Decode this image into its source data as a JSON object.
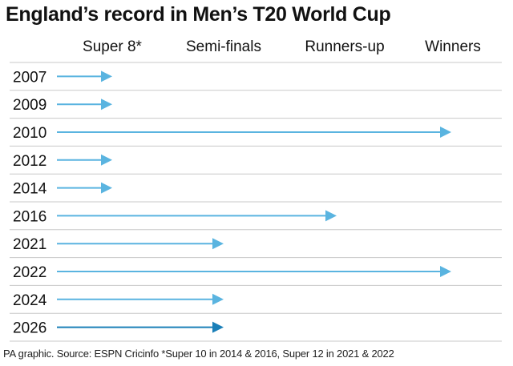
{
  "title": "England’s record in Men’s T20 World Cup",
  "footer": "PA graphic. Source: ESPN Cricinfo *Super 10 in 2014 & 2016, Super 12 in 2021 & 2022",
  "colors": {
    "arrow": "#5ab4e0",
    "arrow_latest": "#1a7fb8",
    "grid": "#c8c8c8",
    "text": "#111111"
  },
  "chart_data": {
    "type": "bar",
    "title": "England’s record in Men’s T20 World Cup",
    "stages": [
      "Super 8*",
      "Semi-finals",
      "Runners-up",
      "Winners"
    ],
    "categories": [
      "2007",
      "2009",
      "2010",
      "2012",
      "2014",
      "2016",
      "2021",
      "2022",
      "2024",
      "2026"
    ],
    "values": [
      "Super 8*",
      "Super 8*",
      "Winners",
      "Super 8*",
      "Super 8*",
      "Runners-up",
      "Semi-finals",
      "Winners",
      "Semi-finals",
      "Semi-finals"
    ],
    "stage_index": [
      0,
      0,
      3,
      0,
      0,
      2,
      1,
      3,
      1,
      1
    ],
    "highlight": "2026",
    "grid": true
  }
}
